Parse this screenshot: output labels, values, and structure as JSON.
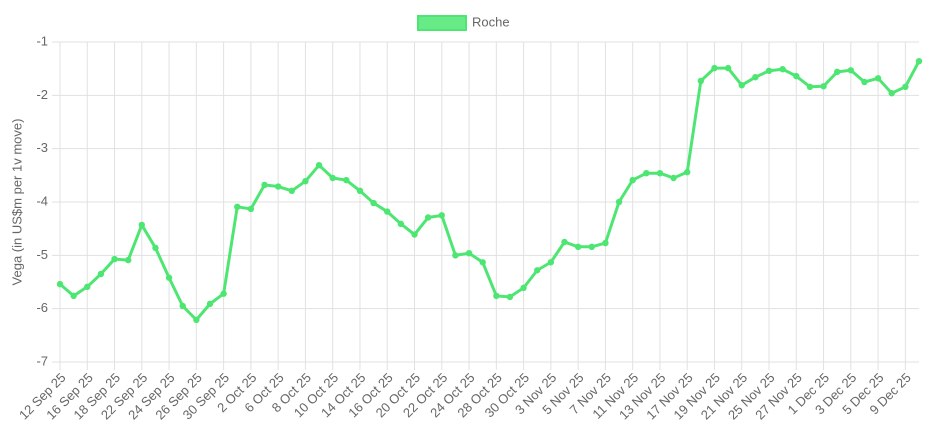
{
  "chart_data": {
    "type": "line",
    "y_label": "Vega (in US$m per 1v move)",
    "categories": [
      "12 Sep 25",
      null,
      "16 Sep 25",
      null,
      "18 Sep 25",
      null,
      "22 Sep 25",
      null,
      "24 Sep 25",
      null,
      "26 Sep 25",
      null,
      "30 Sep 25",
      null,
      "2 Oct 25",
      null,
      "6 Oct 25",
      null,
      "8 Oct 25",
      null,
      "10 Oct 25",
      null,
      "14 Oct 25",
      null,
      "16 Oct 25",
      null,
      "20 Oct 25",
      null,
      "22 Oct 25",
      null,
      "24 Oct 25",
      null,
      "28 Oct 25",
      null,
      "30 Oct 25",
      null,
      "3 Nov 25",
      null,
      "5 Nov 25",
      null,
      "7 Nov 25",
      null,
      "11 Nov 25",
      null,
      "13 Nov 25",
      null,
      "17 Nov 25",
      null,
      "19 Nov 25",
      null,
      "21 Nov 25",
      null,
      "25 Nov 25",
      null,
      "27 Nov 25",
      null,
      "1 Dec 25",
      null,
      "3 Dec 25",
      null,
      "5 Dec 25",
      null,
      "9 Dec 25",
      null
    ],
    "series": [
      {
        "name": "Roche",
        "color": "#4ee672",
        "values": [
          -5.54,
          -5.76,
          -5.59,
          -5.35,
          -5.07,
          -5.09,
          -4.43,
          -4.86,
          -5.42,
          -5.95,
          -6.21,
          -5.91,
          -5.72,
          -4.09,
          -4.13,
          -3.68,
          -3.71,
          -3.79,
          -3.61,
          -3.31,
          -3.55,
          -3.59,
          -3.79,
          -4.02,
          -4.18,
          -4.41,
          -4.61,
          -4.29,
          -4.25,
          -5.0,
          -4.96,
          -5.13,
          -5.76,
          -5.78,
          -5.61,
          -5.28,
          -5.13,
          -4.75,
          -4.84,
          -4.84,
          -4.77,
          -4.0,
          -3.59,
          -3.46,
          -3.46,
          -3.55,
          -3.44,
          -1.73,
          -1.49,
          -1.49,
          -1.81,
          -1.66,
          -1.54,
          -1.51,
          -1.64,
          -1.84,
          -1.83,
          -1.56,
          -1.53,
          -1.75,
          -1.68,
          -1.96,
          -1.84,
          -1.36
        ]
      }
    ],
    "ylim": [
      -7,
      -1
    ],
    "yticks": [
      -7,
      -6,
      -5,
      -4,
      -3,
      -2,
      -1
    ],
    "grid": true,
    "legend": "top"
  }
}
